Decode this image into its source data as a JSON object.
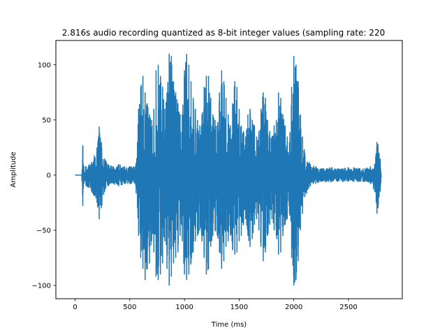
{
  "chart_data": {
    "type": "line",
    "title": "2.816s audio recording quantized as 8-bit integer values (sampling rate: 220",
    "xlabel": "Time (ms)",
    "ylabel": "Amplitude",
    "xlim": [
      -176,
      2992
    ],
    "ylim": [
      -112,
      122
    ],
    "x_ticks": [
      0,
      500,
      1000,
      1500,
      2000,
      2500
    ],
    "y_ticks": [
      -100,
      -50,
      0,
      50,
      100
    ],
    "x_tick_labels": [
      "0",
      "500",
      "1000",
      "1500",
      "2000",
      "2500"
    ],
    "y_tick_labels": [
      "−100",
      "−50",
      "0",
      "50",
      "100"
    ],
    "grid": false,
    "legend": "none",
    "color": "#1f77b4",
    "series": [
      {
        "x": [
          0,
          60,
          68,
          70,
          75,
          80,
          100,
          150,
          200,
          220,
          240,
          270,
          300,
          350,
          400,
          450,
          500,
          550,
          570,
          580,
          600,
          620,
          640,
          660,
          680,
          700,
          720,
          740,
          760,
          780,
          800,
          820,
          840,
          860,
          880,
          900,
          920,
          940,
          960,
          980,
          1000,
          1020,
          1040,
          1060,
          1080,
          1100,
          1120,
          1140,
          1160,
          1180,
          1200,
          1220,
          1240,
          1260,
          1280,
          1300,
          1320,
          1340,
          1360,
          1380,
          1400,
          1420,
          1440,
          1460,
          1480,
          1500,
          1520,
          1540,
          1560,
          1580,
          1600,
          1620,
          1640,
          1660,
          1680,
          1700,
          1720,
          1740,
          1760,
          1780,
          1800,
          1820,
          1840,
          1860,
          1880,
          1900,
          1920,
          1940,
          1960,
          1980,
          2000,
          2020,
          2040,
          2060,
          2080,
          2100,
          2150,
          2200,
          2250,
          2300,
          2350,
          2400,
          2450,
          2500,
          2550,
          2600,
          2650,
          2700,
          2740,
          2760,
          2770,
          2780,
          2790,
          2800
        ],
        "max": [
          0,
          0,
          14,
          27,
          10,
          8,
          8,
          12,
          25,
          44,
          30,
          15,
          10,
          8,
          10,
          8,
          8,
          8,
          30,
          60,
          80,
          90,
          75,
          65,
          55,
          50,
          60,
          95,
          100,
          90,
          80,
          60,
          75,
          110,
          108,
          85,
          75,
          65,
          55,
          55,
          95,
          110,
          100,
          85,
          70,
          60,
          50,
          45,
          55,
          80,
          90,
          90,
          70,
          55,
          50,
          45,
          75,
          95,
          85,
          70,
          55,
          45,
          65,
          85,
          80,
          60,
          45,
          40,
          35,
          55,
          60,
          50,
          45,
          35,
          40,
          60,
          75,
          70,
          50,
          40,
          35,
          45,
          50,
          75,
          70,
          55,
          45,
          35,
          30,
          80,
          108,
          100,
          85,
          55,
          35,
          20,
          10,
          8,
          6,
          6,
          7,
          6,
          6,
          7,
          7,
          6,
          6,
          8,
          10,
          30,
          28,
          20,
          15,
          0
        ],
        "min": [
          0,
          0,
          -18,
          -28,
          -12,
          -8,
          -10,
          -15,
          -25,
          -40,
          -30,
          -15,
          -10,
          -8,
          -10,
          -8,
          -8,
          -8,
          -30,
          -55,
          -75,
          -85,
          -95,
          -85,
          -80,
          -60,
          -70,
          -92,
          -95,
          -90,
          -80,
          -60,
          -85,
          -100,
          -92,
          -80,
          -75,
          -70,
          -55,
          -60,
          -90,
          -95,
          -90,
          -80,
          -70,
          -60,
          -55,
          -50,
          -60,
          -75,
          -90,
          -85,
          -65,
          -55,
          -50,
          -55,
          -70,
          -85,
          -78,
          -65,
          -60,
          -55,
          -68,
          -72,
          -70,
          -60,
          -55,
          -45,
          -40,
          -55,
          -65,
          -58,
          -45,
          -40,
          -50,
          -65,
          -78,
          -70,
          -55,
          -45,
          -40,
          -50,
          -55,
          -72,
          -70,
          -55,
          -45,
          -40,
          -35,
          -75,
          -100,
          -95,
          -78,
          -50,
          -35,
          -20,
          -10,
          -8,
          -6,
          -6,
          -6,
          -6,
          -6,
          -6,
          -6,
          -6,
          -6,
          -8,
          -15,
          -35,
          -30,
          -20,
          -15,
          0
        ]
      }
    ]
  }
}
